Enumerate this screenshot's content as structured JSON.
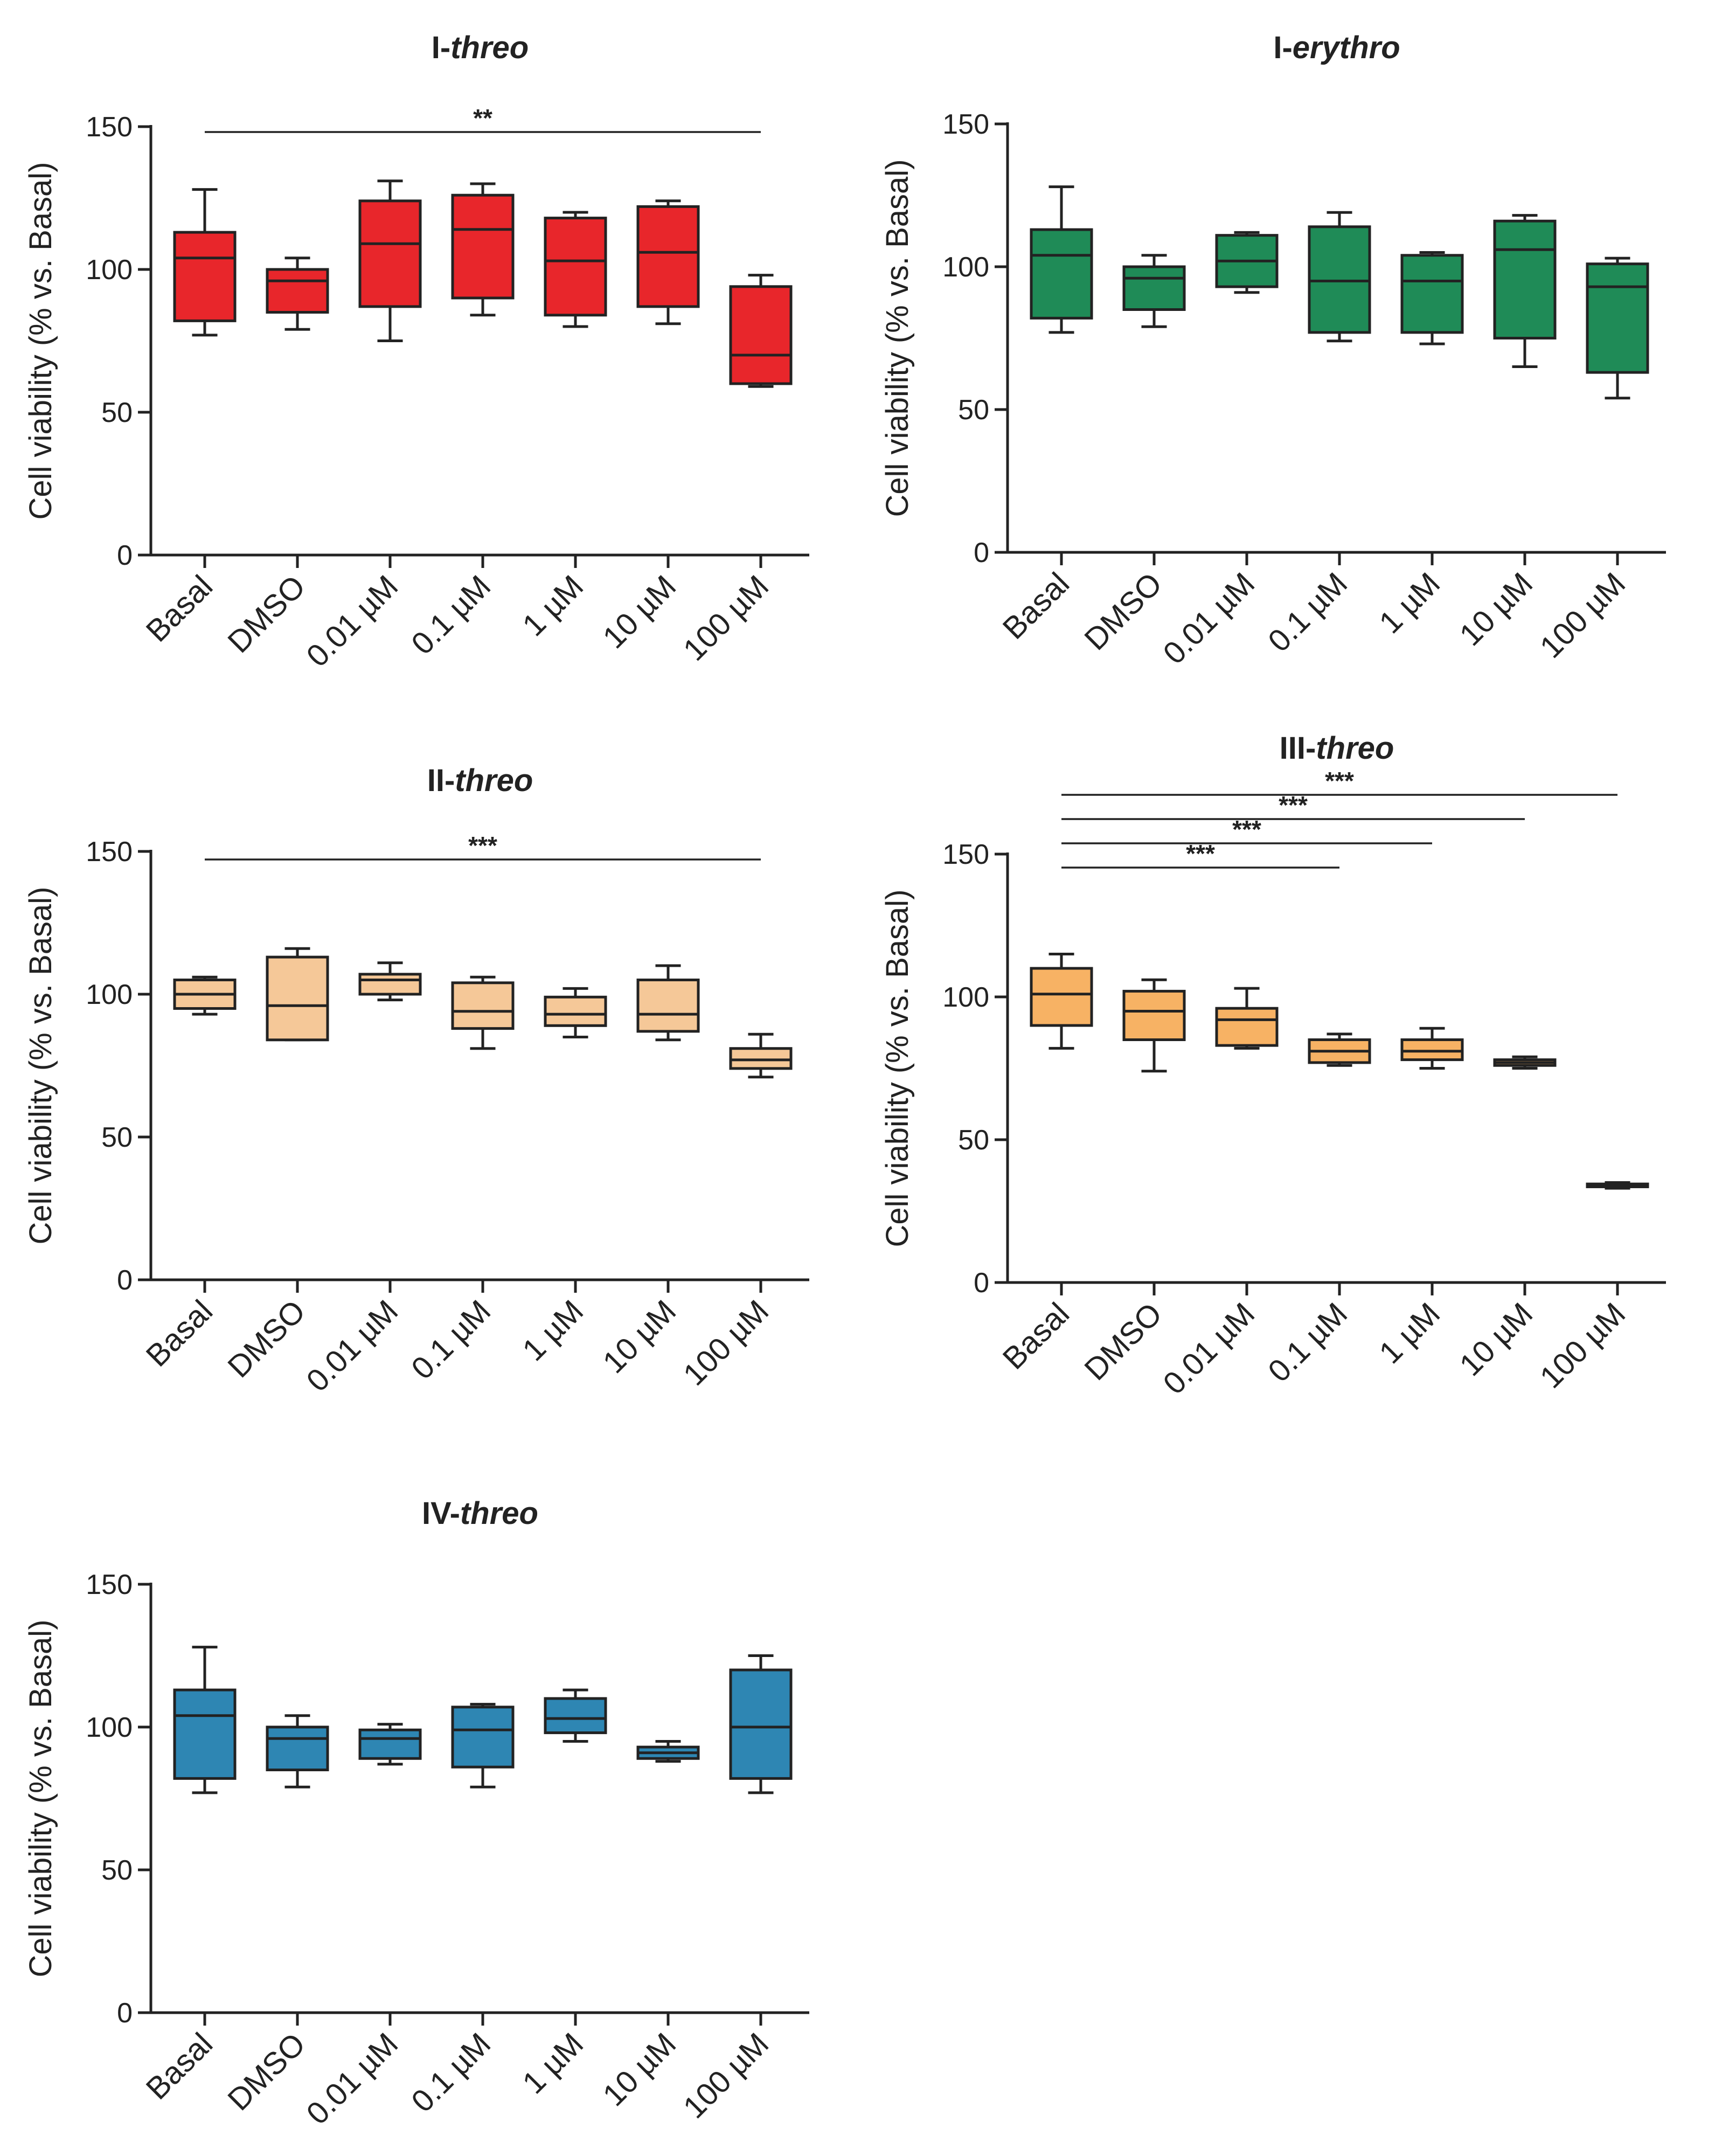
{
  "figure": {
    "y_axis_label": "Cell viability (% vs. Basal)",
    "categories": [
      "Basal",
      "DMSO",
      "0.01 µM",
      "0.1 µM",
      "1 µM",
      "10 µM",
      "100 µM"
    ]
  },
  "chart_data": [
    {
      "type": "box",
      "title_prefix": "I-",
      "title_italic": "threo",
      "color": "#e8262b",
      "ylabel": "Cell viability (% vs. Basal)",
      "ylim": [
        0,
        150
      ],
      "yticks": [
        0,
        50,
        100,
        150
      ],
      "categories": [
        "Basal",
        "DMSO",
        "0.01 µM",
        "0.1 µM",
        "1 µM",
        "10 µM",
        "100 µM"
      ],
      "boxes": [
        {
          "min": 77,
          "q1": 82,
          "median": 104,
          "q3": 113,
          "max": 128
        },
        {
          "min": 79,
          "q1": 85,
          "median": 96,
          "q3": 100,
          "max": 104
        },
        {
          "min": 75,
          "q1": 87,
          "median": 109,
          "q3": 124,
          "max": 131
        },
        {
          "min": 84,
          "q1": 90,
          "median": 114,
          "q3": 126,
          "max": 130
        },
        {
          "min": 80,
          "q1": 84,
          "median": 103,
          "q3": 118,
          "max": 120
        },
        {
          "min": 81,
          "q1": 87,
          "median": 106,
          "q3": 122,
          "max": 124
        },
        {
          "min": 59,
          "q1": 60,
          "median": 70,
          "q3": 94,
          "max": 98
        }
      ],
      "significance": [
        {
          "from": "Basal",
          "to": "100 µM",
          "label": "**"
        }
      ]
    },
    {
      "type": "box",
      "title_prefix": "I-",
      "title_italic": "erythro",
      "color": "#1f8b57",
      "ylabel": "Cell viability (% vs. Basal)",
      "ylim": [
        0,
        150
      ],
      "yticks": [
        0,
        50,
        100,
        150
      ],
      "categories": [
        "Basal",
        "DMSO",
        "0.01 µM",
        "0.1 µM",
        "1 µM",
        "10 µM",
        "100 µM"
      ],
      "boxes": [
        {
          "min": 77,
          "q1": 82,
          "median": 104,
          "q3": 113,
          "max": 128
        },
        {
          "min": 79,
          "q1": 85,
          "median": 96,
          "q3": 100,
          "max": 104
        },
        {
          "min": 91,
          "q1": 93,
          "median": 102,
          "q3": 111,
          "max": 112
        },
        {
          "min": 74,
          "q1": 77,
          "median": 95,
          "q3": 114,
          "max": 119
        },
        {
          "min": 73,
          "q1": 77,
          "median": 95,
          "q3": 104,
          "max": 105
        },
        {
          "min": 65,
          "q1": 75,
          "median": 106,
          "q3": 116,
          "max": 118
        },
        {
          "min": 54,
          "q1": 63,
          "median": 93,
          "q3": 101,
          "max": 103
        }
      ],
      "significance": []
    },
    {
      "type": "box",
      "title_prefix": "II-",
      "title_italic": "threo",
      "color": "#f5c898",
      "ylabel": "Cell viability (% vs. Basal)",
      "ylim": [
        0,
        150
      ],
      "yticks": [
        0,
        50,
        100,
        150
      ],
      "categories": [
        "Basal",
        "DMSO",
        "0.01 µM",
        "0.1 µM",
        "1 µM",
        "10 µM",
        "100 µM"
      ],
      "boxes": [
        {
          "min": 93,
          "q1": 95,
          "median": 100,
          "q3": 105,
          "max": 106
        },
        {
          "min": 84,
          "q1": 84,
          "median": 96,
          "q3": 113,
          "max": 116
        },
        {
          "min": 98,
          "q1": 100,
          "median": 105,
          "q3": 107,
          "max": 111
        },
        {
          "min": 81,
          "q1": 88,
          "median": 94,
          "q3": 104,
          "max": 106
        },
        {
          "min": 85,
          "q1": 89,
          "median": 93,
          "q3": 99,
          "max": 102
        },
        {
          "min": 84,
          "q1": 87,
          "median": 93,
          "q3": 105,
          "max": 110
        },
        {
          "min": 71,
          "q1": 74,
          "median": 77,
          "q3": 81,
          "max": 86
        }
      ],
      "significance": [
        {
          "from": "Basal",
          "to": "100 µM",
          "label": "***"
        }
      ]
    },
    {
      "type": "box",
      "title_prefix": "III-",
      "title_italic": "threo",
      "color": "#f7b264",
      "ylabel": "Cell viability (% vs. Basal)",
      "ylim": [
        0,
        150
      ],
      "yticks": [
        0,
        50,
        100,
        150
      ],
      "categories": [
        "Basal",
        "DMSO",
        "0.01 µM",
        "0.1 µM",
        "1 µM",
        "10 µM",
        "100 µM"
      ],
      "boxes": [
        {
          "min": 82,
          "q1": 90,
          "median": 101,
          "q3": 110,
          "max": 115
        },
        {
          "min": 74,
          "q1": 85,
          "median": 95,
          "q3": 102,
          "max": 106
        },
        {
          "min": 82,
          "q1": 83,
          "median": 92,
          "q3": 96,
          "max": 103
        },
        {
          "min": 76,
          "q1": 77,
          "median": 81,
          "q3": 85,
          "max": 87
        },
        {
          "min": 75,
          "q1": 78,
          "median": 81,
          "q3": 85,
          "max": 89
        },
        {
          "min": 75,
          "q1": 76,
          "median": 77,
          "q3": 78,
          "max": 79
        },
        {
          "min": 33,
          "q1": 33.5,
          "median": 34,
          "q3": 34.5,
          "max": 35
        }
      ],
      "significance": [
        {
          "from": "Basal",
          "to": "100 µM",
          "label": "***"
        },
        {
          "from": "Basal",
          "to": "10 µM",
          "label": "***"
        },
        {
          "from": "Basal",
          "to": "1 µM",
          "label": "***"
        },
        {
          "from": "Basal",
          "to": "0.1 µM",
          "label": "***"
        }
      ]
    },
    {
      "type": "box",
      "title_prefix": "IV-",
      "title_italic": "threo",
      "color": "#2e86b3",
      "ylabel": "Cell viability (% vs. Basal)",
      "ylim": [
        0,
        150
      ],
      "yticks": [
        0,
        50,
        100,
        150
      ],
      "categories": [
        "Basal",
        "DMSO",
        "0.01 µM",
        "0.1 µM",
        "1 µM",
        "10 µM",
        "100 µM"
      ],
      "boxes": [
        {
          "min": 77,
          "q1": 82,
          "median": 104,
          "q3": 113,
          "max": 128
        },
        {
          "min": 79,
          "q1": 85,
          "median": 96,
          "q3": 100,
          "max": 104
        },
        {
          "min": 87,
          "q1": 89,
          "median": 96,
          "q3": 99,
          "max": 101
        },
        {
          "min": 79,
          "q1": 86,
          "median": 99,
          "q3": 107,
          "max": 108
        },
        {
          "min": 95,
          "q1": 98,
          "median": 103,
          "q3": 110,
          "max": 113
        },
        {
          "min": 88,
          "q1": 89,
          "median": 91,
          "q3": 93,
          "max": 95
        },
        {
          "min": 77,
          "q1": 82,
          "median": 100,
          "q3": 120,
          "max": 125
        }
      ],
      "significance": []
    }
  ]
}
